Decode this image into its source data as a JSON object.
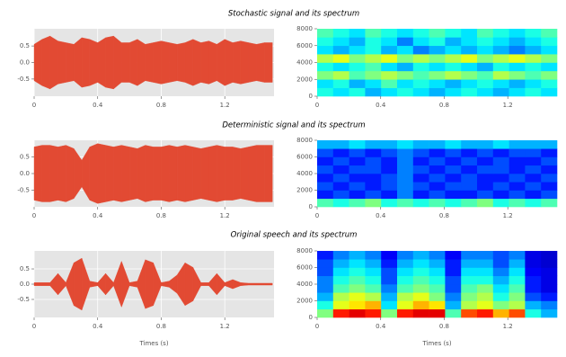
{
  "chart_data": [
    {
      "type": "waveform",
      "title": "Stochastic signal and its spectrum",
      "color": "#e24a33",
      "facecolor": "#e5e5e5",
      "grid": true,
      "x": [
        0,
        0.05,
        0.1,
        0.15,
        0.2,
        0.25,
        0.3,
        0.35,
        0.4,
        0.45,
        0.5,
        0.55,
        0.6,
        0.65,
        0.7,
        0.75,
        0.8,
        0.85,
        0.9,
        0.95,
        1.0,
        1.05,
        1.1,
        1.15,
        1.2,
        1.25,
        1.3,
        1.35,
        1.4,
        1.45,
        1.5
      ],
      "values": [
        0.55,
        0.7,
        0.8,
        0.65,
        0.6,
        0.55,
        0.75,
        0.7,
        0.6,
        0.75,
        0.8,
        0.6,
        0.6,
        0.7,
        0.55,
        0.6,
        0.65,
        0.6,
        0.55,
        0.6,
        0.7,
        0.6,
        0.65,
        0.55,
        0.7,
        0.6,
        0.65,
        0.6,
        0.55,
        0.6,
        0.6
      ],
      "xlim": [
        0,
        1.51
      ],
      "xticks": [
        0,
        0.4,
        0.8,
        1.2
      ],
      "ylim": [
        -1.02,
        1.02
      ],
      "yticks": [
        0.5,
        {
          "value": 0,
          "label": "0.0"
        },
        -0.5
      ]
    },
    {
      "type": "spectrogram",
      "colormap": "jet",
      "xlim": [
        0,
        1.51
      ],
      "xticks": [
        0,
        0.4,
        0.8,
        1.2
      ],
      "ylim": [
        0,
        8000
      ],
      "yticks": [
        0,
        2000,
        4000,
        6000,
        8000
      ],
      "z": [
        [
          0.4,
          0.35,
          0.4,
          0.3,
          0.35,
          0.4,
          0.35,
          0.3,
          0.35,
          0.4,
          0.35,
          0.3,
          0.35,
          0.4,
          0.35
        ],
        [
          0.35,
          0.4,
          0.3,
          0.35,
          0.45,
          0.35,
          0.4,
          0.35,
          0.3,
          0.35,
          0.4,
          0.35,
          0.3,
          0.35,
          0.4
        ],
        [
          0.5,
          0.55,
          0.45,
          0.5,
          0.55,
          0.5,
          0.45,
          0.5,
          0.55,
          0.5,
          0.45,
          0.55,
          0.5,
          0.45,
          0.5
        ],
        [
          0.4,
          0.35,
          0.4,
          0.45,
          0.35,
          0.3,
          0.4,
          0.35,
          0.4,
          0.35,
          0.3,
          0.4,
          0.35,
          0.4,
          0.35
        ],
        [
          0.55,
          0.6,
          0.5,
          0.55,
          0.6,
          0.5,
          0.55,
          0.5,
          0.55,
          0.6,
          0.5,
          0.55,
          0.6,
          0.55,
          0.5
        ],
        [
          0.35,
          0.3,
          0.35,
          0.4,
          0.3,
          0.35,
          0.25,
          0.3,
          0.35,
          0.3,
          0.35,
          0.3,
          0.25,
          0.3,
          0.35
        ],
        [
          0.4,
          0.35,
          0.3,
          0.4,
          0.35,
          0.25,
          0.35,
          0.4,
          0.3,
          0.35,
          0.4,
          0.35,
          0.3,
          0.35,
          0.4
        ],
        [
          0.45,
          0.4,
          0.35,
          0.45,
          0.4,
          0.35,
          0.4,
          0.45,
          0.4,
          0.35,
          0.45,
          0.4,
          0.35,
          0.4,
          0.45
        ]
      ]
    },
    {
      "type": "waveform",
      "title": "Deterministic signal and its spectrum",
      "color": "#e24a33",
      "facecolor": "#e5e5e5",
      "grid": true,
      "x": [
        0,
        0.05,
        0.1,
        0.15,
        0.2,
        0.25,
        0.3,
        0.35,
        0.4,
        0.45,
        0.5,
        0.55,
        0.6,
        0.65,
        0.7,
        0.75,
        0.8,
        0.85,
        0.9,
        0.95,
        1.0,
        1.05,
        1.1,
        1.15,
        1.2,
        1.25,
        1.3,
        1.35,
        1.4,
        1.45,
        1.5
      ],
      "values": [
        0.8,
        0.85,
        0.85,
        0.8,
        0.85,
        0.75,
        0.4,
        0.8,
        0.9,
        0.85,
        0.8,
        0.85,
        0.8,
        0.75,
        0.85,
        0.8,
        0.8,
        0.85,
        0.8,
        0.85,
        0.8,
        0.75,
        0.8,
        0.85,
        0.8,
        0.8,
        0.75,
        0.8,
        0.85,
        0.85,
        0.85
      ],
      "xlim": [
        0,
        1.51
      ],
      "xticks": [
        0,
        0.4,
        0.8,
        1.2
      ],
      "ylim": [
        -1.0,
        1.0
      ],
      "yticks": [
        0.5,
        {
          "value": 0,
          "label": "0.0"
        },
        -0.5
      ]
    },
    {
      "type": "spectrogram",
      "colormap": "jet",
      "xlim": [
        0,
        1.51
      ],
      "xticks": [
        0,
        0.4,
        0.8,
        1.2
      ],
      "ylim": [
        0,
        8000
      ],
      "yticks": [
        0,
        2000,
        4000,
        6000,
        8000
      ],
      "z": [
        [
          0.45,
          0.4,
          0.45,
          0.5,
          0.4,
          0.45,
          0.4,
          0.45,
          0.4,
          0.45,
          0.5,
          0.4,
          0.45,
          0.4,
          0.45
        ],
        [
          0.15,
          0.2,
          0.15,
          0.2,
          0.15,
          0.25,
          0.15,
          0.2,
          0.15,
          0.15,
          0.2,
          0.15,
          0.2,
          0.15,
          0.2
        ],
        [
          0.2,
          0.15,
          0.2,
          0.15,
          0.2,
          0.25,
          0.2,
          0.15,
          0.2,
          0.2,
          0.15,
          0.2,
          0.15,
          0.2,
          0.15
        ],
        [
          0.15,
          0.2,
          0.15,
          0.15,
          0.2,
          0.25,
          0.15,
          0.2,
          0.15,
          0.2,
          0.15,
          0.15,
          0.2,
          0.15,
          0.2
        ],
        [
          0.2,
          0.15,
          0.2,
          0.2,
          0.15,
          0.25,
          0.2,
          0.15,
          0.2,
          0.15,
          0.2,
          0.2,
          0.15,
          0.2,
          0.15
        ],
        [
          0.15,
          0.2,
          0.15,
          0.2,
          0.15,
          0.25,
          0.15,
          0.2,
          0.15,
          0.2,
          0.15,
          0.2,
          0.15,
          0.15,
          0.2
        ],
        [
          0.2,
          0.15,
          0.2,
          0.15,
          0.2,
          0.25,
          0.2,
          0.15,
          0.2,
          0.15,
          0.2,
          0.15,
          0.2,
          0.2,
          0.15
        ],
        [
          0.3,
          0.3,
          0.35,
          0.3,
          0.3,
          0.35,
          0.3,
          0.3,
          0.35,
          0.3,
          0.3,
          0.35,
          0.3,
          0.3,
          0.3
        ]
      ]
    },
    {
      "type": "waveform",
      "title": "Original speech and its spectrum",
      "x_label": "Times (s)",
      "color": "#e24a33",
      "facecolor": "#e5e5e5",
      "grid": true,
      "x": [
        0,
        0.05,
        0.1,
        0.15,
        0.2,
        0.25,
        0.3,
        0.35,
        0.4,
        0.45,
        0.5,
        0.55,
        0.6,
        0.65,
        0.7,
        0.75,
        0.8,
        0.85,
        0.9,
        0.95,
        1.0,
        1.05,
        1.1,
        1.15,
        1.2,
        1.25,
        1.3,
        1.35,
        1.4,
        1.45,
        1.5
      ],
      "values": [
        0.05,
        0.05,
        0.05,
        0.35,
        0.05,
        0.7,
        0.85,
        0.1,
        0.05,
        0.35,
        0.05,
        0.75,
        0.05,
        0.1,
        0.8,
        0.7,
        0.05,
        0.1,
        0.3,
        0.7,
        0.55,
        0.05,
        0.05,
        0.35,
        0.05,
        0.15,
        0.05,
        0.03,
        0.03,
        0.03,
        0.03
      ],
      "xlim": [
        0,
        1.51
      ],
      "xticks": [
        0,
        0.4,
        0.8,
        1.2
      ],
      "ylim": [
        -1.09,
        1.09
      ],
      "yticks": [
        0.5,
        {
          "value": 0,
          "label": "0.0"
        },
        -0.5
      ]
    },
    {
      "type": "spectrogram",
      "colormap": "jet",
      "x_label": "Times (s)",
      "xlim": [
        0,
        1.51
      ],
      "xticks": [
        0,
        0.4,
        0.8,
        1.2
      ],
      "ylim": [
        0,
        8000
      ],
      "yticks": [
        0,
        2000,
        4000,
        6000,
        8000
      ],
      "z": [
        [
          0.5,
          0.85,
          0.9,
          0.85,
          0.5,
          0.85,
          0.9,
          0.9,
          0.45,
          0.8,
          0.85,
          0.7,
          0.8,
          0.4,
          0.3
        ],
        [
          0.4,
          0.6,
          0.65,
          0.7,
          0.35,
          0.6,
          0.7,
          0.65,
          0.3,
          0.55,
          0.6,
          0.5,
          0.55,
          0.3,
          0.25
        ],
        [
          0.3,
          0.55,
          0.6,
          0.55,
          0.3,
          0.55,
          0.6,
          0.5,
          0.25,
          0.5,
          0.55,
          0.4,
          0.5,
          0.2,
          0.15
        ],
        [
          0.25,
          0.45,
          0.5,
          0.45,
          0.25,
          0.45,
          0.5,
          0.45,
          0.2,
          0.45,
          0.5,
          0.35,
          0.45,
          0.15,
          0.1
        ],
        [
          0.25,
          0.4,
          0.45,
          0.4,
          0.2,
          0.4,
          0.45,
          0.4,
          0.2,
          0.4,
          0.4,
          0.3,
          0.4,
          0.15,
          0.1
        ],
        [
          0.2,
          0.35,
          0.4,
          0.35,
          0.2,
          0.35,
          0.4,
          0.35,
          0.15,
          0.35,
          0.35,
          0.25,
          0.35,
          0.12,
          0.1
        ],
        [
          0.2,
          0.3,
          0.35,
          0.3,
          0.15,
          0.3,
          0.35,
          0.3,
          0.15,
          0.3,
          0.3,
          0.2,
          0.3,
          0.1,
          0.08
        ],
        [
          0.15,
          0.25,
          0.3,
          0.25,
          0.12,
          0.25,
          0.3,
          0.25,
          0.12,
          0.25,
          0.25,
          0.2,
          0.25,
          0.1,
          0.08
        ]
      ]
    }
  ]
}
